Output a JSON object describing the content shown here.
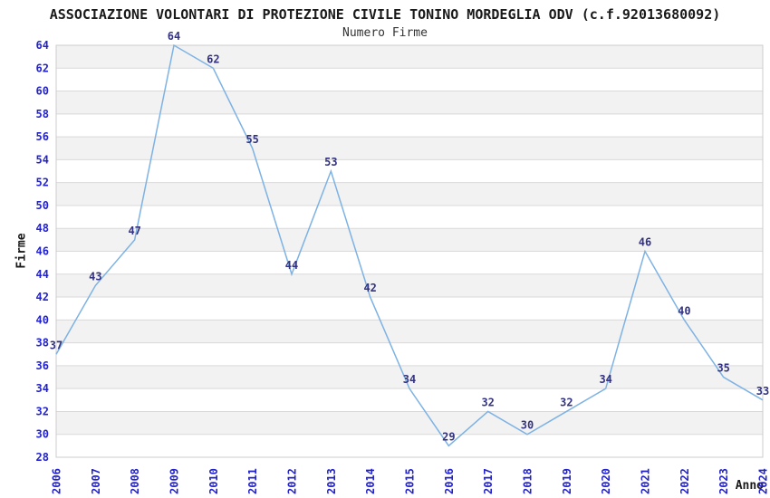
{
  "chart_data": {
    "type": "line",
    "title": "ASSOCIAZIONE VOLONTARI DI PROTEZIONE CIVILE TONINO MORDEGLIA ODV (c.f.92013680092)",
    "subtitle": "Numero Firme",
    "xlabel": "Anno",
    "ylabel": "Firme",
    "x": [
      2006,
      2007,
      2008,
      2009,
      2010,
      2011,
      2012,
      2013,
      2014,
      2015,
      2016,
      2017,
      2018,
      2019,
      2020,
      2021,
      2022,
      2023,
      2024
    ],
    "series": [
      {
        "name": "Numero Firme",
        "values": [
          37,
          43,
          47,
          64,
          62,
          55,
          44,
          53,
          42,
          34,
          29,
          32,
          30,
          32,
          34,
          46,
          40,
          35,
          33
        ]
      }
    ],
    "ylim": [
      28,
      64
    ],
    "y_tick_step": 2,
    "grid": true,
    "legend": "none",
    "band_fill": "#f2f2f2",
    "grid_color": "#d9d9d9",
    "border_color": "#cccccc",
    "line_color": "#7db2e4",
    "data_label_color": "#333380",
    "tick_label_color": "#2222cc"
  }
}
